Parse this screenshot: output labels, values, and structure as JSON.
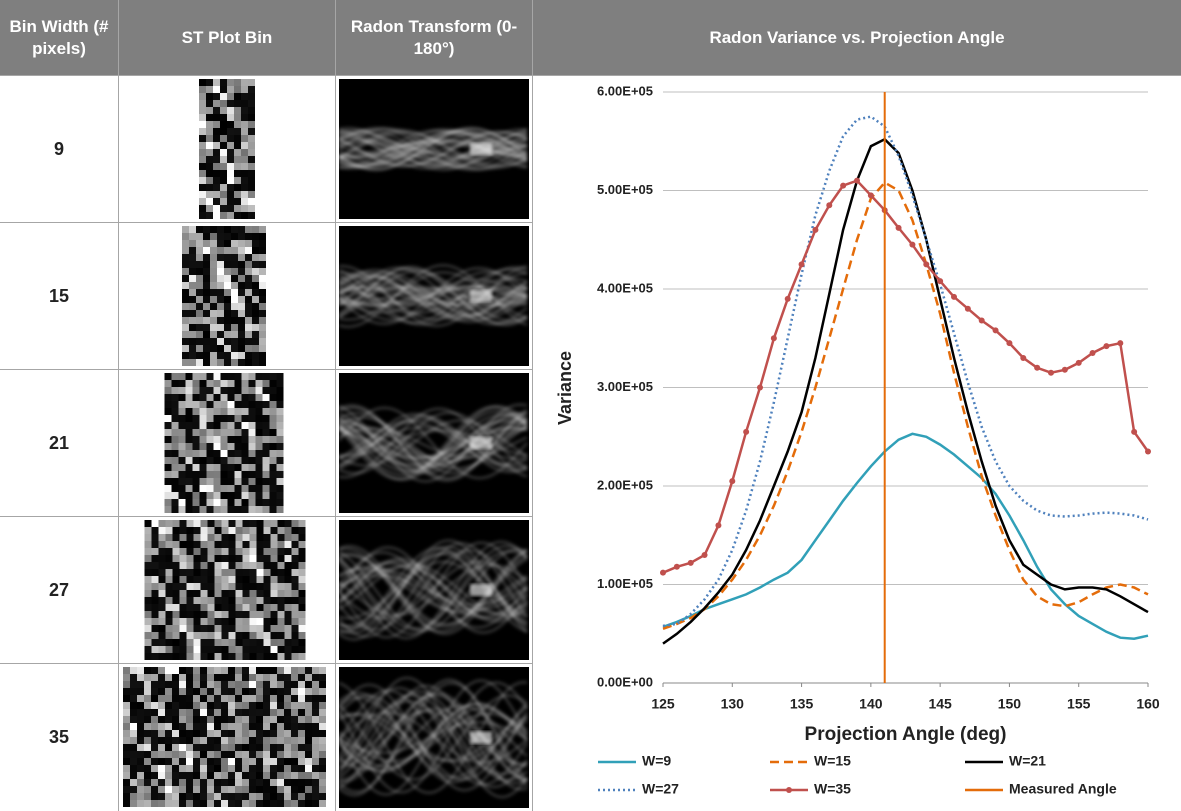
{
  "table": {
    "headers": [
      "Bin Width (# pixels)",
      "ST Plot Bin",
      "Radon Transform (0-180°)"
    ],
    "rows": [
      9,
      15,
      21,
      27,
      35
    ]
  },
  "chart_data": {
    "type": "line",
    "title": "Radon Variance vs. Projection Angle",
    "x_label": "Projection Angle (deg)",
    "y_label": "Variance",
    "x": [
      125,
      126,
      127,
      128,
      129,
      130,
      131,
      132,
      133,
      134,
      135,
      136,
      137,
      138,
      139,
      140,
      141,
      142,
      143,
      144,
      145,
      146,
      147,
      148,
      149,
      150,
      151,
      152,
      153,
      154,
      155,
      156,
      157,
      158,
      159,
      160
    ],
    "xlim": [
      125,
      160
    ],
    "xticks": [
      125,
      130,
      135,
      140,
      145,
      150,
      155,
      160
    ],
    "ylim": [
      0,
      600000
    ],
    "yticks": [
      {
        "value": 0,
        "label": "0.00E+00"
      },
      {
        "value": 100000,
        "label": "1.00E+05"
      },
      {
        "value": 200000,
        "label": "2.00E+05"
      },
      {
        "value": 300000,
        "label": "3.00E+05"
      },
      {
        "value": 400000,
        "label": "4.00E+05"
      },
      {
        "value": 500000,
        "label": "5.00E+05"
      },
      {
        "value": 600000,
        "label": "6.00E+05"
      }
    ],
    "grid": true,
    "series": [
      {
        "name": "W=9",
        "color": "#31a0b8",
        "style": "solid",
        "marker": false,
        "values": [
          57000,
          62000,
          68000,
          75000,
          80000,
          85000,
          90000,
          97000,
          105000,
          112000,
          125000,
          145000,
          165000,
          185000,
          203000,
          220000,
          235000,
          247000,
          253000,
          250000,
          242000,
          232000,
          220000,
          208000,
          192000,
          170000,
          145000,
          118000,
          95000,
          80000,
          68000,
          60000,
          52000,
          46000,
          45000,
          48000
        ]
      },
      {
        "name": "W=15",
        "color": "#e46c0a",
        "style": "dashed",
        "marker": false,
        "values": [
          55000,
          60000,
          66000,
          75000,
          88000,
          105000,
          125000,
          150000,
          180000,
          215000,
          255000,
          300000,
          350000,
          400000,
          450000,
          492000,
          508000,
          500000,
          470000,
          425000,
          375000,
          315000,
          260000,
          210000,
          170000,
          135000,
          105000,
          88000,
          80000,
          78000,
          82000,
          90000,
          97000,
          100000,
          97000,
          90000
        ]
      },
      {
        "name": "W=21",
        "color": "#000000",
        "style": "solid",
        "marker": false,
        "values": [
          40000,
          50000,
          62000,
          76000,
          92000,
          110000,
          135000,
          165000,
          200000,
          235000,
          275000,
          330000,
          395000,
          460000,
          510000,
          545000,
          552000,
          538000,
          500000,
          450000,
          390000,
          330000,
          275000,
          225000,
          180000,
          145000,
          120000,
          110000,
          100000,
          95000,
          97000,
          97000,
          95000,
          88000,
          80000,
          72000
        ]
      },
      {
        "name": "W=27",
        "color": "#4f81bd",
        "style": "dotted",
        "marker": false,
        "values": [
          58000,
          60000,
          70000,
          85000,
          105000,
          135000,
          175000,
          225000,
          285000,
          350000,
          415000,
          475000,
          520000,
          555000,
          572000,
          575000,
          565000,
          535000,
          495000,
          450000,
          405000,
          355000,
          305000,
          260000,
          225000,
          200000,
          185000,
          175000,
          170000,
          169000,
          170000,
          172000,
          173000,
          172000,
          170000,
          166000
        ]
      },
      {
        "name": "W=35",
        "color": "#c0504d",
        "style": "solid",
        "marker": true,
        "values": [
          112000,
          118000,
          122000,
          130000,
          160000,
          205000,
          255000,
          300000,
          350000,
          390000,
          425000,
          460000,
          485000,
          505000,
          510000,
          495000,
          480000,
          462000,
          445000,
          425000,
          408000,
          392000,
          380000,
          368000,
          358000,
          345000,
          330000,
          320000,
          315000,
          318000,
          325000,
          335000,
          342000,
          345000,
          255000,
          235000
        ]
      }
    ],
    "reference_line": {
      "name": "Measured Angle",
      "x": 141,
      "color": "#e46c0a"
    }
  }
}
